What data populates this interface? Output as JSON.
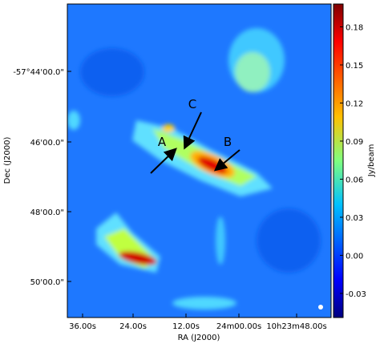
{
  "chart_data": {
    "type": "image",
    "xlabel": "RA (J2000)",
    "ylabel": "Dec (J2000)",
    "x_tick_labels": [
      "36.00s",
      "24.00s",
      "12.00s",
      "24m00.00s",
      "10h23m48.00s"
    ],
    "y_tick_labels": [
      "-57°44'00.0\"",
      "46'00.0\"",
      "48'00.0\"",
      "50'00.0\""
    ],
    "annotations": [
      "A",
      "B",
      "C"
    ],
    "colormap": "jet",
    "colorbar": {
      "label": "Jy/beam",
      "lim": [
        -0.049,
        0.198
      ],
      "ticks": [
        0.18,
        0.15,
        0.12,
        0.09,
        0.06,
        0.03,
        {
          "value": 0,
          "label": "0.00"
        },
        -0.03
      ]
    }
  }
}
